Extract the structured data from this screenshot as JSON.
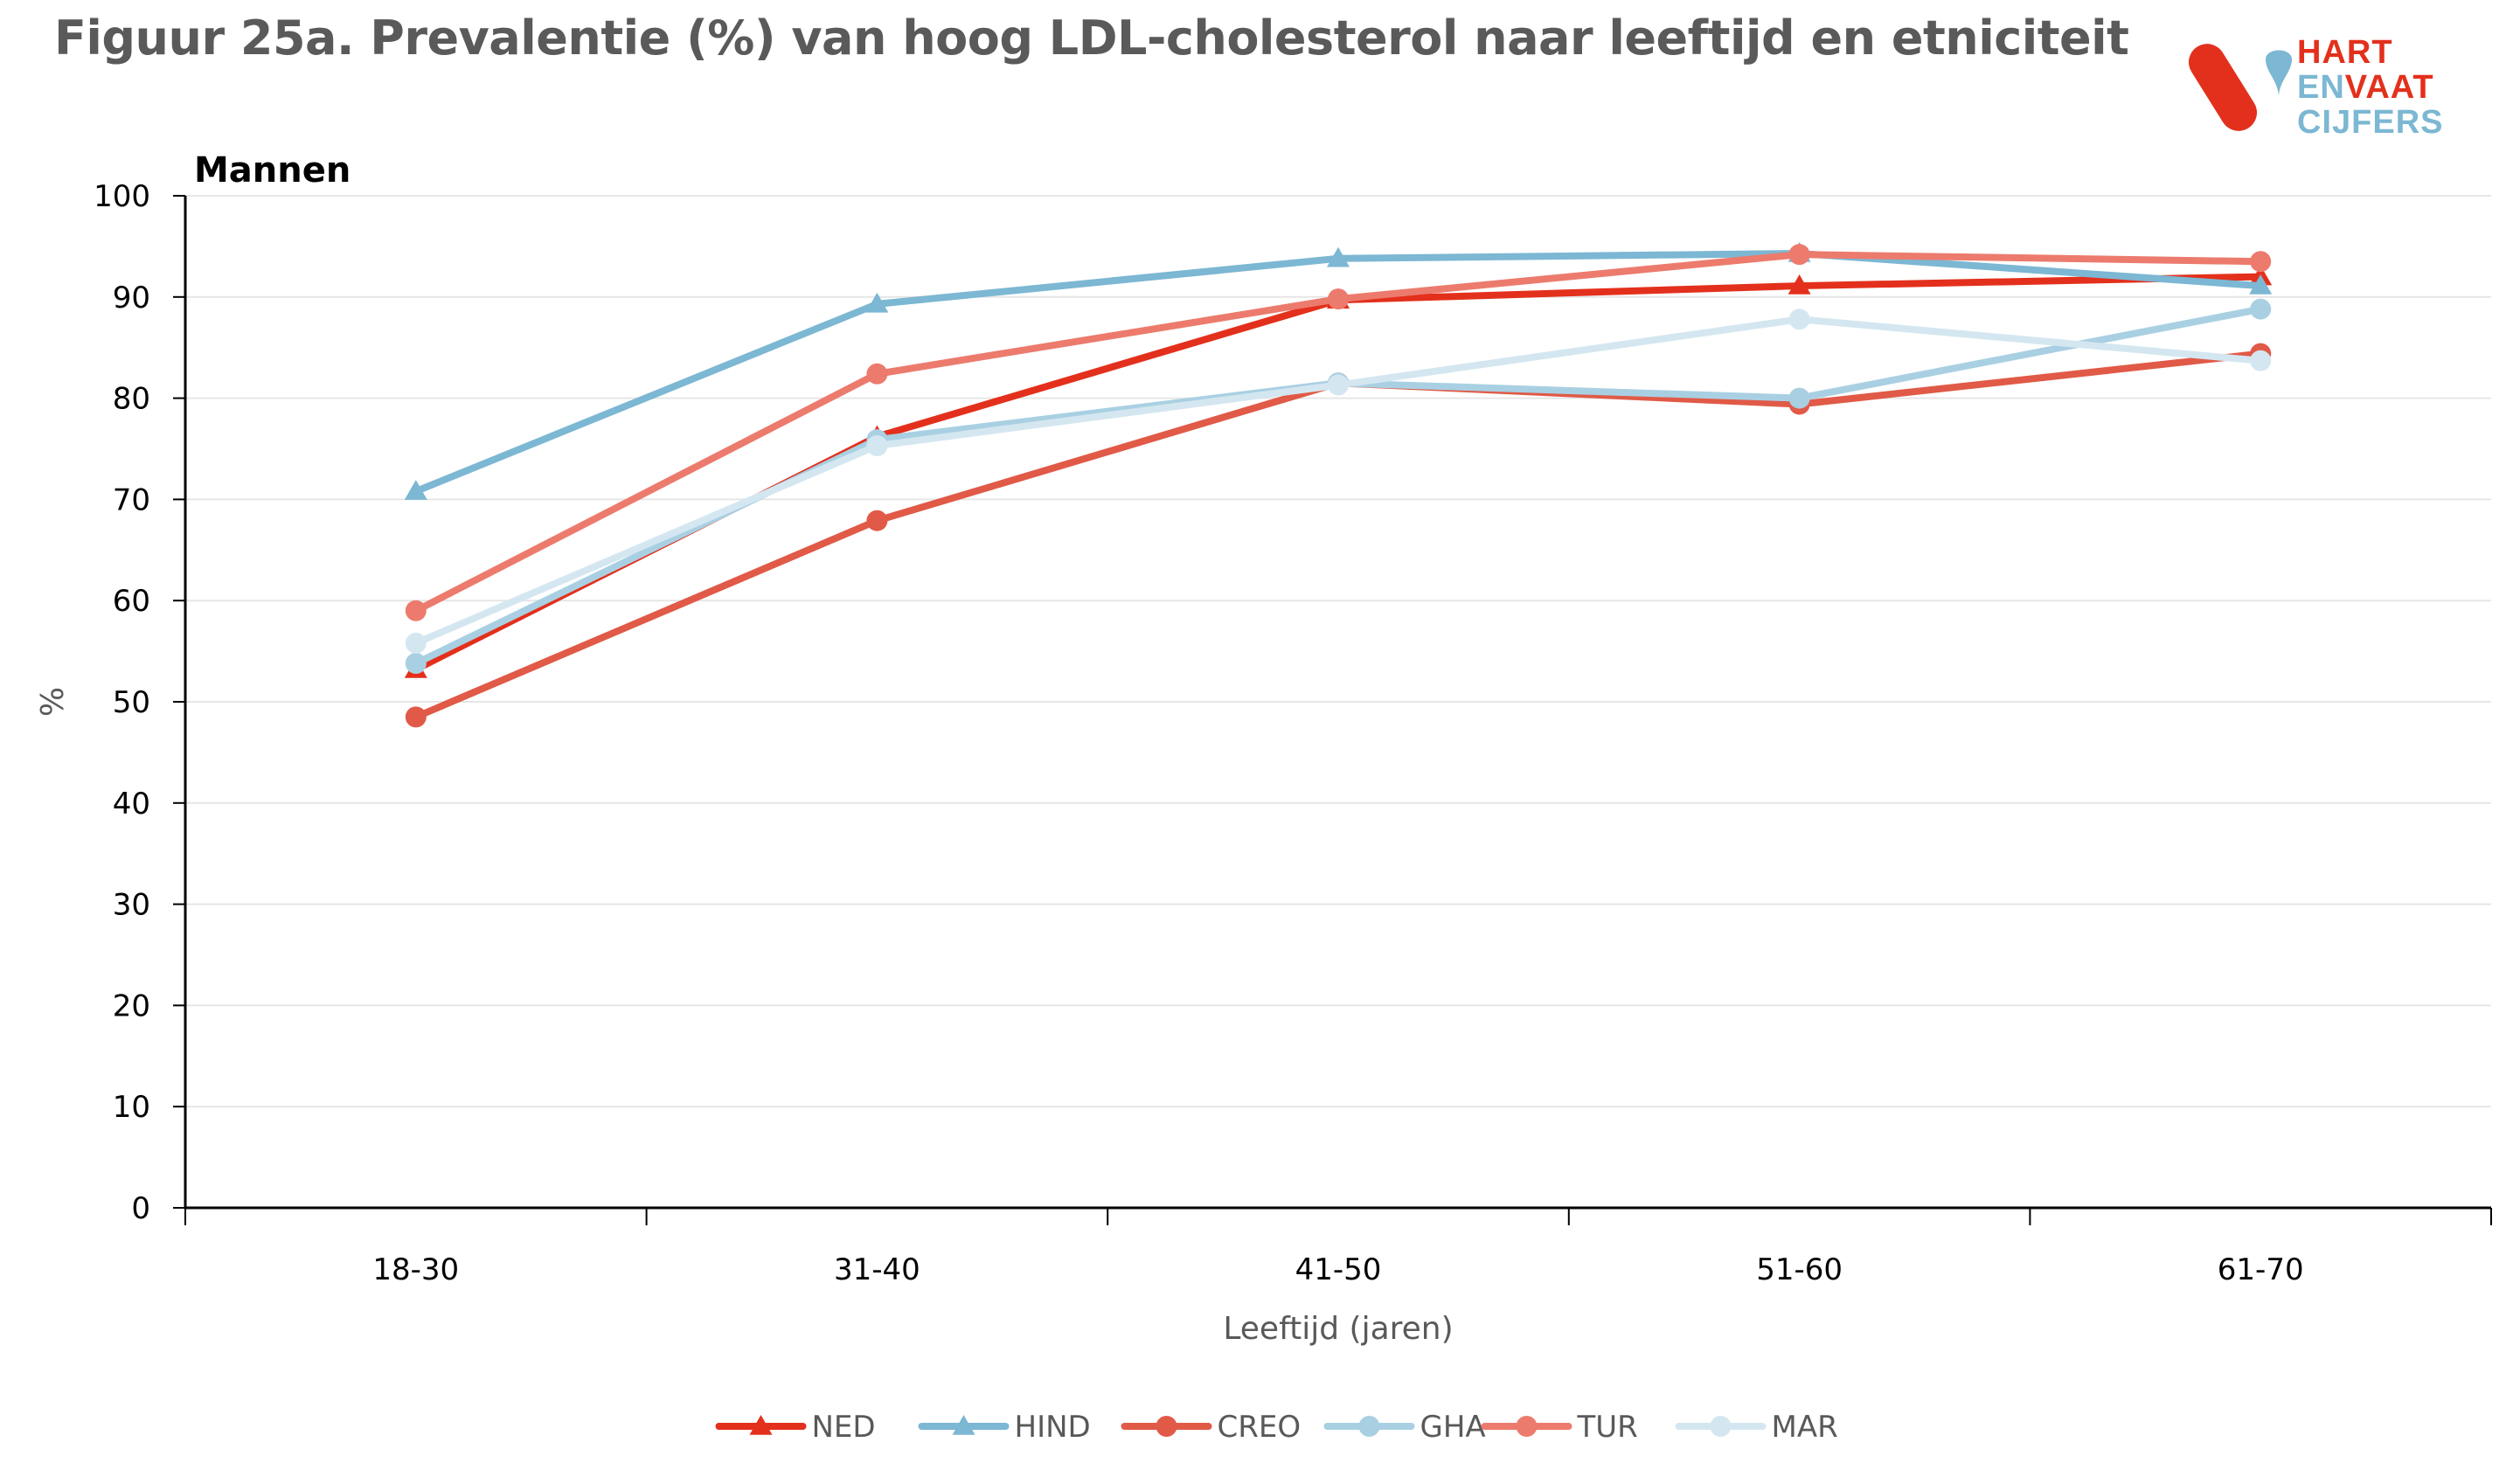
{
  "title": "Figuur 25a. Prevalentie (%) van  hoog LDL-cholesterol naar leeftijd en etniciteit",
  "logo": {
    "line1": "HART",
    "line2a": "EN",
    "line2b": "VAAT",
    "line3": "CIJFERS"
  },
  "chart_data": {
    "type": "line",
    "subtitle": "Mannen",
    "xlabel": "Leeftijd (jaren)",
    "ylabel": "%",
    "categories": [
      "18-30",
      "31-40",
      "41-50",
      "51-60",
      "61-70"
    ],
    "ylim": [
      0,
      100
    ],
    "yticks": [
      0,
      10,
      20,
      30,
      40,
      50,
      60,
      70,
      80,
      90,
      100
    ],
    "grid": true,
    "legend_position": "bottom",
    "series": [
      {
        "name": "NED",
        "values": [
          53.2,
          76.2,
          89.7,
          91.1,
          92.0
        ],
        "color": "#e3301c",
        "marker": "triangle"
      },
      {
        "name": "HIND",
        "values": [
          70.8,
          89.3,
          93.8,
          94.3,
          91.1
        ],
        "color": "#7cb7d3",
        "marker": "triangle"
      },
      {
        "name": "CREO",
        "values": [
          48.5,
          67.9,
          81.5,
          79.4,
          84.4
        ],
        "color": "#e05a47",
        "marker": "circle"
      },
      {
        "name": "GHA",
        "values": [
          53.8,
          75.9,
          81.5,
          80.0,
          88.8
        ],
        "color": "#a9d0e2",
        "marker": "circle"
      },
      {
        "name": "TUR",
        "values": [
          59.0,
          82.4,
          89.8,
          94.2,
          93.5
        ],
        "color": "#ec7b6d",
        "marker": "circle"
      },
      {
        "name": "MAR",
        "values": [
          55.8,
          75.3,
          81.3,
          87.8,
          83.7
        ],
        "color": "#d4e7f1",
        "marker": "circle"
      }
    ]
  }
}
